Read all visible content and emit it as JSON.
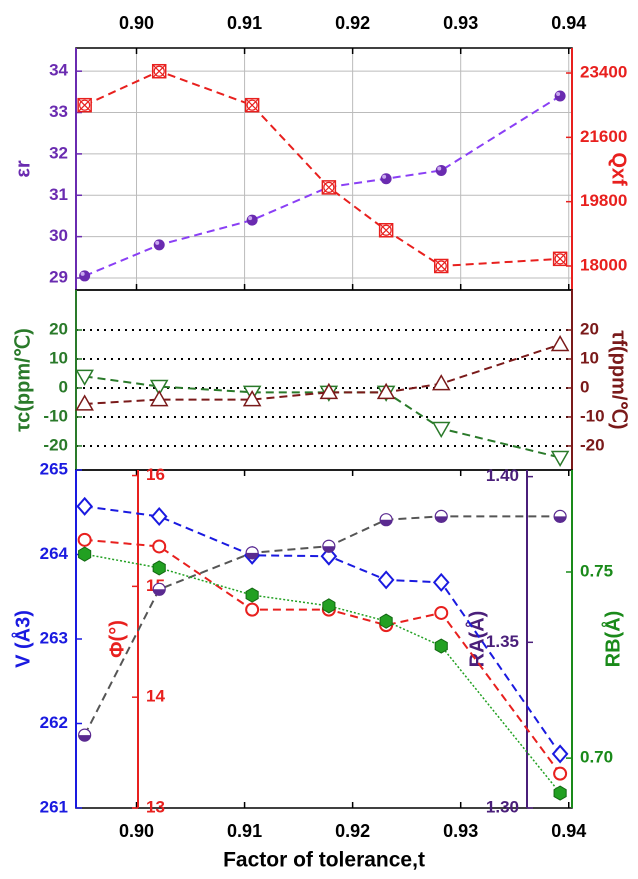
{
  "chart_data": [
    {
      "type": "line",
      "xaxis": "top",
      "x": [
        0.8952,
        0.9021,
        0.9107,
        0.9178,
        0.9231,
        0.9282,
        0.9392
      ],
      "xlim": [
        0.8944,
        0.9403
      ],
      "xticks": [
        {
          "value": 0.9,
          "label": "0.90"
        },
        0.91,
        0.92,
        0.93,
        0.94
      ],
      "grid": "solid",
      "ylabel": "εr",
      "ylim": [
        28.71,
        34.56
      ],
      "yticks": [
        29,
        30,
        31,
        32,
        33,
        34
      ],
      "ycolor": "#6a2bb0",
      "y2label": "Qxf",
      "y2lim": [
        17328,
        24100
      ],
      "y2ticks": [
        18000,
        19800,
        21600,
        23400
      ],
      "y2color": "#e8201e",
      "series": [
        {
          "color": "#6a2bb0",
          "line_color": "#8a3ff5",
          "marker": "ball",
          "dash": "dashed",
          "axis": "y",
          "values": [
            29.05,
            29.8,
            30.4,
            31.2,
            31.4,
            31.6,
            33.4
          ]
        },
        {
          "color": "#e8201e",
          "line_color": "#e8201e",
          "marker": "crossed-square",
          "dash": "dashed",
          "axis": "y2",
          "values": [
            22500,
            23450,
            22500,
            20200,
            19000,
            18000,
            18200
          ]
        }
      ]
    },
    {
      "type": "line",
      "x": [
        0.8952,
        0.9021,
        0.9107,
        0.9178,
        0.9231,
        0.9282,
        0.9392
      ],
      "xlim": [
        0.8944,
        0.9403
      ],
      "grid": "dotted",
      "ylabel": "τc(ppm/℃)",
      "ylim": [
        -28.3,
        33.8
      ],
      "yticks": [
        20,
        10,
        0,
        -10,
        -20
      ],
      "ycolor": "#2a7a2a",
      "y2label": "τf(ppm/℃)",
      "y2lim": [
        -28.3,
        33.8
      ],
      "y2ticks": [
        20,
        10,
        0,
        -10,
        -20
      ],
      "y2color": "#7a1a1a",
      "series": [
        {
          "color": "#2a7a2a",
          "line_color": "#2a7a2a",
          "marker": "triangle-down",
          "dash": "dashed",
          "axis": "y",
          "values": [
            4,
            0.5,
            -1.5,
            -1.5,
            -1.5,
            -14,
            -24
          ]
        },
        {
          "color": "#7a1a1a",
          "line_color": "#7a1a1a",
          "marker": "triangle-up",
          "dash": "dashed",
          "axis": "y2",
          "values": [
            -5.5,
            -4,
            -4,
            -1.5,
            -1.5,
            1.5,
            15
          ]
        }
      ]
    },
    {
      "type": "line",
      "xaxis": "bottom",
      "xlabel": "Factor of tolerance,t",
      "x": [
        0.8952,
        0.9021,
        0.9107,
        0.9178,
        0.9231,
        0.9282,
        0.9392
      ],
      "xlim": [
        0.8944,
        0.9403
      ],
      "xticks": [
        {
          "value": 0.9,
          "label": "0.90"
        },
        0.91,
        0.92,
        0.93,
        0.94
      ],
      "ylabel": "V (Å3)",
      "ylim": [
        261,
        265
      ],
      "yticks": [
        261,
        262,
        263,
        264,
        265
      ],
      "ycolor": "#1a1ae0",
      "y2label": "Φ(°)",
      "y2lim": [
        13,
        16.05
      ],
      "y2ticks": [
        13,
        14,
        15,
        16
      ],
      "y2color": "#e8201e",
      "y3label": "RA(Å)",
      "y3lim": [
        1.3,
        1.402
      ],
      "y3ticks": [
        {
          "value": 1.3,
          "label": "1.30"
        },
        1.35,
        {
          "value": 1.4,
          "label": "1.40"
        }
      ],
      "y3color": "#4a1f7a",
      "y4label": "RB(Å)",
      "y4lim": [
        0.6866,
        0.7774
      ],
      "y4ticks": [
        {
          "value": 0.7,
          "label": "0.70"
        },
        0.75
      ],
      "y4color": "#1a8a1a",
      "series": [
        {
          "color": "#1a1ae0",
          "line_color": "#1a1ae0",
          "marker": "diamond",
          "dash": "dashed",
          "axis": "y",
          "values": [
            264.57,
            264.45,
            263.99,
            263.98,
            263.7,
            263.67,
            261.64
          ]
        },
        {
          "color": "#e8201e",
          "line_color": "#e8201e",
          "marker": "open-circle",
          "dash": "dashed",
          "axis": "y2",
          "values": [
            15.42,
            15.36,
            14.79,
            14.79,
            14.65,
            14.76,
            13.31
          ]
        },
        {
          "color": "#5a2a90",
          "line_color": "#555555",
          "marker": "half-circle",
          "dash": "dashed",
          "axis": "y3",
          "values": [
            1.322,
            1.366,
            1.377,
            1.379,
            1.387,
            1.388,
            1.388
          ]
        },
        {
          "color": "#22a022",
          "line_color": "#22a022",
          "marker": "hexagon",
          "dash": "dotted",
          "axis": "y4",
          "values": [
            0.7548,
            0.7511,
            0.7438,
            0.7409,
            0.7368,
            0.7301,
            0.6906
          ]
        }
      ]
    }
  ]
}
